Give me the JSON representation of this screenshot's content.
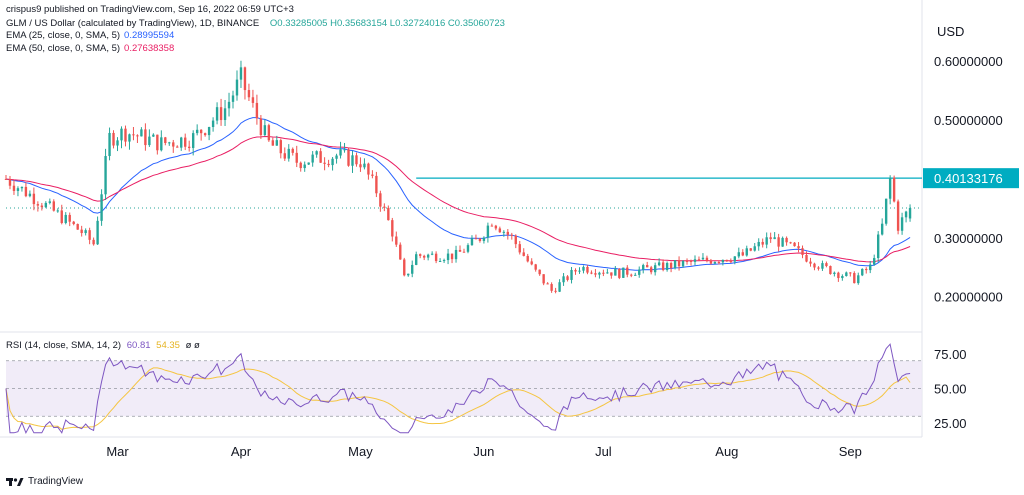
{
  "header": {
    "byline": "crispus9 published on TradingView.com, Sep 16, 2022 06:59 UTC+3",
    "symbol": "GLM / US Dollar (calculated by TradingView), 1D, BINANCE",
    "ohlc": "O0.33285005 H0.35683154 L0.32724016 C0.35060723"
  },
  "legend": {
    "ema25_label": "EMA (25, close, 0, SMA, 5)",
    "ema25_value": "0.28995594",
    "ema50_label": "EMA (50, close, 0, SMA, 5)",
    "ema50_value": "0.27638358"
  },
  "rsi_legend": {
    "label": "RSI (14, close, SMA, 14, 2)",
    "rsi_value": "60.81",
    "sma_value": "54.35",
    "extra": "ø ø"
  },
  "price_axis": {
    "unit": "USD",
    "labels": [
      "0.60000000",
      "0.50000000",
      "0.30000000",
      "0.20000000"
    ],
    "current_label": "0.40133176"
  },
  "rsi_axis": {
    "labels": [
      "75.00",
      "50.00",
      "25.00"
    ]
  },
  "time_axis": {
    "labels": [
      "Mar",
      "Apr",
      "May",
      "Jun",
      "Jul",
      "Aug",
      "Sep"
    ]
  },
  "branding": {
    "logo_text": "TradingView"
  },
  "colors": {
    "up": "#26a69a",
    "down": "#ef5350",
    "ema25": "#2962ff",
    "ema50": "#e91e63",
    "level": "#00acc1",
    "rsi": "#7e57c2",
    "rsi_sma": "#f5c542",
    "rsi_band": "#ede7f6"
  },
  "chart_data": [
    {
      "type": "candlestick",
      "title": "GLM / US Dollar (calculated by TradingView), 1D, BINANCE",
      "ylabel": "USD",
      "ylim": [
        0.14,
        0.67
      ],
      "x_range": [
        "2022-02-01",
        "2022-09-19"
      ],
      "x_ticks": [
        "Mar",
        "Apr",
        "May",
        "Jun",
        "Jul",
        "Aug",
        "Sep"
      ],
      "horizontal_level": 0.40133176,
      "close_dotted_level": 0.35060723,
      "anchors": [
        [
          "2022-02-01",
          0.4
        ],
        [
          "2022-02-10",
          0.36
        ],
        [
          "2022-02-20",
          0.31
        ],
        [
          "2022-02-23",
          0.29
        ],
        [
          "2022-02-27",
          0.47
        ],
        [
          "2022-03-03",
          0.48
        ],
        [
          "2022-03-12",
          0.46
        ],
        [
          "2022-03-20",
          0.47
        ],
        [
          "2022-03-28",
          0.52
        ],
        [
          "2022-04-01",
          0.57
        ],
        [
          "2022-04-04",
          0.52
        ],
        [
          "2022-04-08",
          0.46
        ],
        [
          "2022-04-15",
          0.43
        ],
        [
          "2022-04-25",
          0.44
        ],
        [
          "2022-05-01",
          0.43
        ],
        [
          "2022-05-05",
          0.38
        ],
        [
          "2022-05-09",
          0.31
        ],
        [
          "2022-05-12",
          0.23
        ],
        [
          "2022-05-15",
          0.27
        ],
        [
          "2022-05-25",
          0.27
        ],
        [
          "2022-05-31",
          0.3
        ],
        [
          "2022-06-03",
          0.33
        ],
        [
          "2022-06-08",
          0.3
        ],
        [
          "2022-06-13",
          0.25
        ],
        [
          "2022-06-18",
          0.21
        ],
        [
          "2022-06-25",
          0.25
        ],
        [
          "2022-07-05",
          0.24
        ],
        [
          "2022-07-15",
          0.25
        ],
        [
          "2022-07-25",
          0.26
        ],
        [
          "2022-08-05",
          0.27
        ],
        [
          "2022-08-12",
          0.3
        ],
        [
          "2022-08-18",
          0.28
        ],
        [
          "2022-08-25",
          0.25
        ],
        [
          "2022-09-02",
          0.23
        ],
        [
          "2022-09-06",
          0.25
        ],
        [
          "2022-09-09",
          0.32
        ],
        [
          "2022-09-11",
          0.4
        ],
        [
          "2022-09-13",
          0.32
        ],
        [
          "2022-09-16",
          0.35
        ]
      ],
      "series": [
        {
          "name": "EMA (25, close, 0, SMA, 5)",
          "last": 0.28995594
        },
        {
          "name": "EMA (50, close, 0, SMA, 5)",
          "last": 0.27638358
        }
      ],
      "last_bar": {
        "date": "2022-09-16",
        "open": 0.33285005,
        "high": 0.35683154,
        "low": 0.32724016,
        "close": 0.35060723
      }
    },
    {
      "type": "line",
      "title": "RSI (14, close, SMA, 14, 2)",
      "ylim": [
        15,
        85
      ],
      "bands": [
        30,
        50,
        70
      ],
      "series": [
        {
          "name": "RSI",
          "last": 60.81
        },
        {
          "name": "SMA",
          "last": 54.35
        }
      ]
    }
  ]
}
